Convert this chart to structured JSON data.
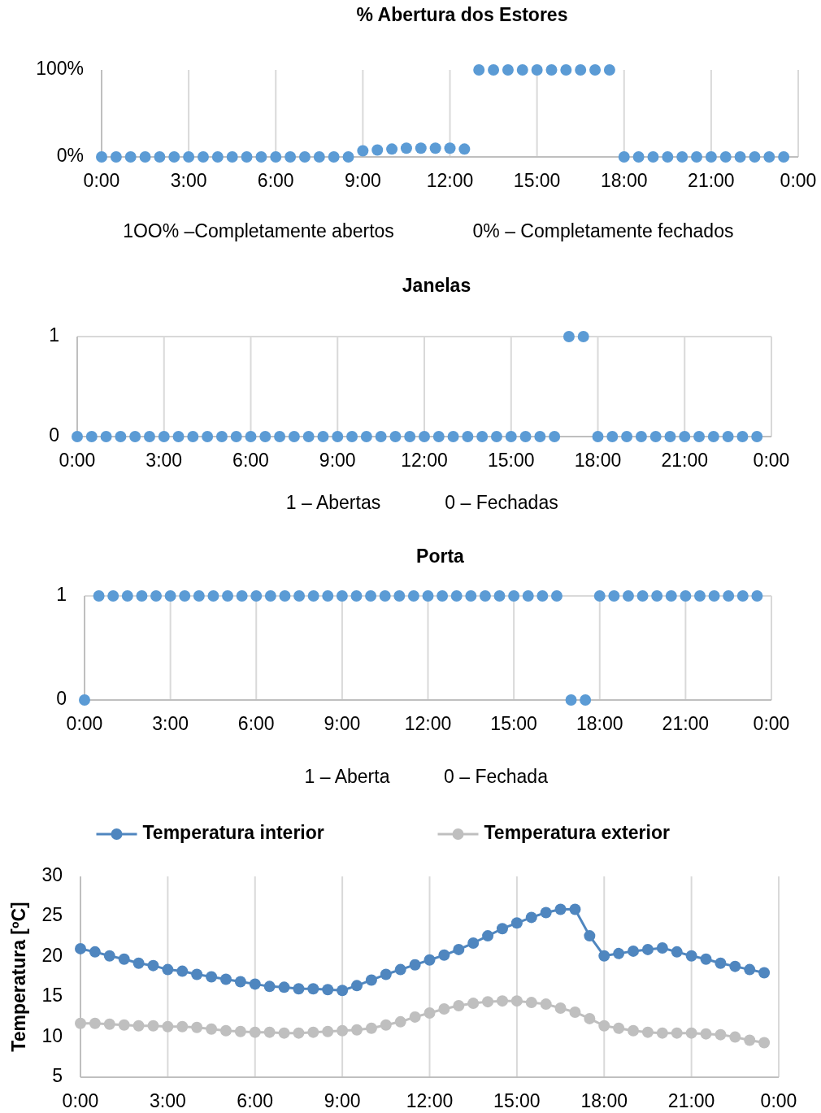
{
  "chart_data": [
    {
      "type": "scatter",
      "title": "% Abertura dos Estores",
      "x": [
        0,
        0.5,
        1,
        1.5,
        2,
        2.5,
        3,
        3.5,
        4,
        4.5,
        5,
        5.5,
        6,
        6.5,
        7,
        7.5,
        8,
        8.5,
        9,
        9.5,
        10,
        10.5,
        11,
        11.5,
        12,
        12.5,
        13,
        13.5,
        14,
        14.5,
        15,
        15.5,
        16,
        16.5,
        17,
        17.5,
        18,
        18.5,
        19,
        19.5,
        20,
        20.5,
        21,
        21.5,
        22,
        22.5,
        23,
        23.5
      ],
      "series": [
        {
          "color": "#5b9bd5",
          "values": [
            0,
            0,
            0,
            0,
            0,
            0,
            0,
            0,
            0,
            0,
            0,
            0,
            0,
            0,
            0,
            0,
            0,
            0,
            7,
            8,
            9,
            10,
            10,
            10,
            10,
            9,
            100,
            100,
            100,
            100,
            100,
            100,
            100,
            100,
            100,
            100,
            0,
            0,
            0,
            0,
            0,
            0,
            0,
            0,
            0,
            0,
            0,
            0
          ]
        }
      ],
      "xlim": [
        0,
        24
      ],
      "xticks": [
        {
          "value": 0,
          "label": "0:00"
        },
        {
          "value": 3,
          "label": "3:00"
        },
        {
          "value": 6,
          "label": "6:00"
        },
        {
          "value": 9,
          "label": "9:00"
        },
        {
          "value": 12,
          "label": "12:00"
        },
        {
          "value": 15,
          "label": "15:00"
        },
        {
          "value": 18,
          "label": "18:00"
        },
        {
          "value": 21,
          "label": "21:00"
        },
        {
          "value": 24,
          "label": "0:00"
        }
      ],
      "ylim": [
        0,
        100
      ],
      "yticks": [
        {
          "value": 0,
          "label": "0%"
        },
        {
          "value": 100,
          "label": "100%"
        }
      ],
      "grid": "x",
      "marker": "circle",
      "legend": false,
      "annotations": [
        "1OO% –Completamente abertos",
        "0% – Completamente fechados"
      ]
    },
    {
      "type": "scatter",
      "title": "Janelas",
      "x": [
        0,
        0.5,
        1,
        1.5,
        2,
        2.5,
        3,
        3.5,
        4,
        4.5,
        5,
        5.5,
        6,
        6.5,
        7,
        7.5,
        8,
        8.5,
        9,
        9.5,
        10,
        10.5,
        11,
        11.5,
        12,
        12.5,
        13,
        13.5,
        14,
        14.5,
        15,
        15.5,
        16,
        16.5,
        17,
        17.5,
        18,
        18.5,
        19,
        19.5,
        20,
        20.5,
        21,
        21.5,
        22,
        22.5,
        23,
        23.5
      ],
      "series": [
        {
          "color": "#5b9bd5",
          "values": [
            0,
            0,
            0,
            0,
            0,
            0,
            0,
            0,
            0,
            0,
            0,
            0,
            0,
            0,
            0,
            0,
            0,
            0,
            0,
            0,
            0,
            0,
            0,
            0,
            0,
            0,
            0,
            0,
            0,
            0,
            0,
            0,
            0,
            0,
            1,
            1,
            0,
            0,
            0,
            0,
            0,
            0,
            0,
            0,
            0,
            0,
            0,
            0
          ]
        }
      ],
      "xlim": [
        0,
        24
      ],
      "xticks": [
        {
          "value": 0,
          "label": "0:00"
        },
        {
          "value": 3,
          "label": "3:00"
        },
        {
          "value": 6,
          "label": "6:00"
        },
        {
          "value": 9,
          "label": "9:00"
        },
        {
          "value": 12,
          "label": "12:00"
        },
        {
          "value": 15,
          "label": "15:00"
        },
        {
          "value": 18,
          "label": "18:00"
        },
        {
          "value": 21,
          "label": "21:00"
        },
        {
          "value": 24,
          "label": "0:00"
        }
      ],
      "ylim": [
        0,
        1
      ],
      "yticks": [
        0,
        1
      ],
      "grid": true,
      "marker": "circle",
      "legend": false,
      "annotations": [
        "1 – Abertas",
        "0 – Fechadas"
      ]
    },
    {
      "type": "scatter",
      "title": "Porta",
      "x": [
        0,
        0.5,
        1,
        1.5,
        2,
        2.5,
        3,
        3.5,
        4,
        4.5,
        5,
        5.5,
        6,
        6.5,
        7,
        7.5,
        8,
        8.5,
        9,
        9.5,
        10,
        10.5,
        11,
        11.5,
        12,
        12.5,
        13,
        13.5,
        14,
        14.5,
        15,
        15.5,
        16,
        16.5,
        17,
        17.5,
        18,
        18.5,
        19,
        19.5,
        20,
        20.5,
        21,
        21.5,
        22,
        22.5,
        23,
        23.5
      ],
      "series": [
        {
          "color": "#5b9bd5",
          "values": [
            0,
            1,
            1,
            1,
            1,
            1,
            1,
            1,
            1,
            1,
            1,
            1,
            1,
            1,
            1,
            1,
            1,
            1,
            1,
            1,
            1,
            1,
            1,
            1,
            1,
            1,
            1,
            1,
            1,
            1,
            1,
            1,
            1,
            1,
            0,
            0,
            1,
            1,
            1,
            1,
            1,
            1,
            1,
            1,
            1,
            1,
            1,
            1
          ]
        }
      ],
      "xlim": [
        0,
        24
      ],
      "xticks": [
        {
          "value": 0,
          "label": "0:00"
        },
        {
          "value": 3,
          "label": "3:00"
        },
        {
          "value": 6,
          "label": "6:00"
        },
        {
          "value": 9,
          "label": "9:00"
        },
        {
          "value": 12,
          "label": "12:00"
        },
        {
          "value": 15,
          "label": "15:00"
        },
        {
          "value": 18,
          "label": "18:00"
        },
        {
          "value": 21,
          "label": "21:00"
        },
        {
          "value": 24,
          "label": "0:00"
        }
      ],
      "ylim": [
        0,
        1
      ],
      "yticks": [
        0,
        1
      ],
      "grid": true,
      "marker": "circle",
      "legend": false,
      "annotations": [
        "1 – Aberta",
        "0 – Fechada"
      ]
    },
    {
      "type": "line",
      "ylabel": "Temperatura  [ºC]",
      "x": [
        0,
        0.5,
        1,
        1.5,
        2,
        2.5,
        3,
        3.5,
        4,
        4.5,
        5,
        5.5,
        6,
        6.5,
        7,
        7.5,
        8,
        8.5,
        9,
        9.5,
        10,
        10.5,
        11,
        11.5,
        12,
        12.5,
        13,
        13.5,
        14,
        14.5,
        15,
        15.5,
        16,
        16.5,
        17,
        17.5,
        18,
        18.5,
        19,
        19.5,
        20,
        20.5,
        21,
        21.5,
        22,
        22.5,
        23,
        23.5
      ],
      "series": [
        {
          "name": "Temperatura interior",
          "color": "#4f86bf",
          "values": [
            21.0,
            20.6,
            20.1,
            19.7,
            19.2,
            18.9,
            18.4,
            18.2,
            17.8,
            17.5,
            17.2,
            16.9,
            16.6,
            16.3,
            16.2,
            16.0,
            16.0,
            15.9,
            15.8,
            16.4,
            17.1,
            17.8,
            18.4,
            19.0,
            19.6,
            20.2,
            20.9,
            21.7,
            22.6,
            23.5,
            24.2,
            24.9,
            25.5,
            25.9,
            25.9,
            22.6,
            20.1,
            20.4,
            20.7,
            20.9,
            21.1,
            20.6,
            20.1,
            19.7,
            19.2,
            18.8,
            18.4,
            18.0
          ]
        },
        {
          "name": "Temperatura exterior",
          "color": "#bfbfbf",
          "values": [
            11.7,
            11.7,
            11.6,
            11.5,
            11.4,
            11.4,
            11.3,
            11.3,
            11.2,
            11.0,
            10.8,
            10.7,
            10.6,
            10.6,
            10.5,
            10.5,
            10.6,
            10.7,
            10.8,
            10.9,
            11.1,
            11.5,
            11.9,
            12.5,
            13.0,
            13.5,
            13.9,
            14.2,
            14.4,
            14.5,
            14.5,
            14.3,
            14.1,
            13.6,
            13.1,
            12.3,
            11.4,
            11.1,
            10.8,
            10.6,
            10.5,
            10.5,
            10.5,
            10.4,
            10.3,
            10.0,
            9.6,
            9.3
          ]
        }
      ],
      "xlim": [
        0,
        24
      ],
      "xticks": [
        {
          "value": 0,
          "label": "0:00"
        },
        {
          "value": 3,
          "label": "3:00"
        },
        {
          "value": 6,
          "label": "6:00"
        },
        {
          "value": 9,
          "label": "9:00"
        },
        {
          "value": 12,
          "label": "12:00"
        },
        {
          "value": 15,
          "label": "15:00"
        },
        {
          "value": 18,
          "label": "18:00"
        },
        {
          "value": 21,
          "label": "21:00"
        },
        {
          "value": 24,
          "label": "0:00"
        }
      ],
      "ylim": [
        5,
        30
      ],
      "yticks": [
        5,
        10,
        15,
        20,
        25,
        30
      ],
      "grid": "x",
      "marker": "circle",
      "line_style": "solid",
      "legend": "top"
    }
  ]
}
